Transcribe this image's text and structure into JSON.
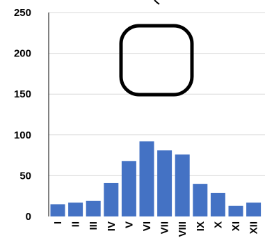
{
  "chart_data": {
    "type": "bar",
    "categories": [
      "I",
      "II",
      "III",
      "IV",
      "V",
      "VI",
      "VII",
      "VIII",
      "IX",
      "X",
      "XI",
      "XII"
    ],
    "values": [
      15,
      17,
      19,
      41,
      68,
      92,
      81,
      76,
      40,
      29,
      13,
      17
    ],
    "ylim": [
      0,
      250
    ],
    "yticks": [
      0,
      50,
      100,
      150,
      200,
      250
    ],
    "grid": "horizontal",
    "colors": {
      "bar": "#4472C4",
      "grid": "#d9d9d9",
      "axis": "#000000",
      "symbol_stroke": "#000000"
    },
    "annotation_symbol": "rounded-square-outline"
  }
}
